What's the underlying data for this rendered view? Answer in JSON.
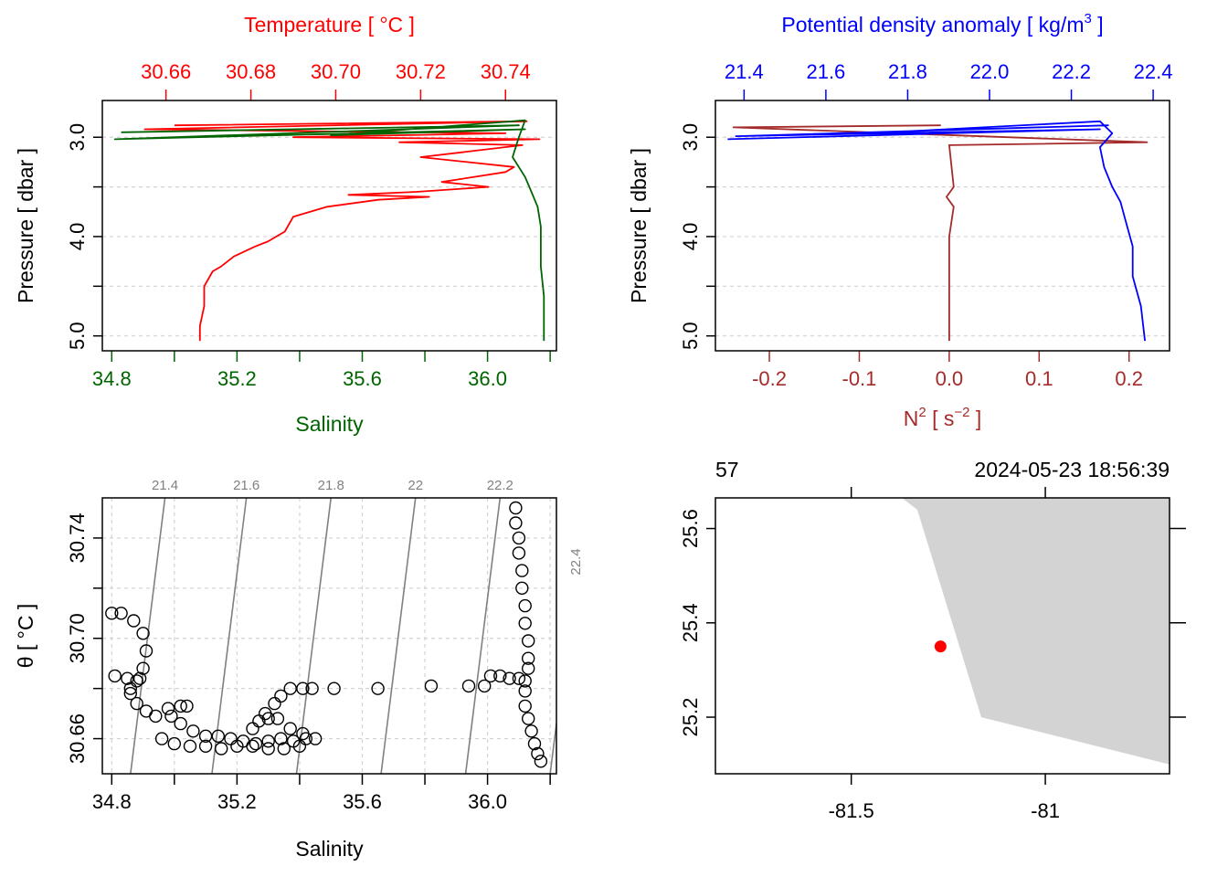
{
  "colors": {
    "temperature": "#ff0000",
    "salinity": "#006400",
    "density": "#0000ff",
    "n2": "#a52a2a",
    "grid": "#d3d3d3",
    "isopycnal": "#808080",
    "land": "#d3d3d3",
    "station": "#ff0000"
  },
  "chart_data": [
    {
      "type": "line",
      "panel": "profile-temperature-salinity",
      "title": "Temperature [ °C ]",
      "top_axis": {
        "label": "Temperature [ °C ]",
        "range": [
          30.645,
          30.752
        ],
        "ticks": [
          30.66,
          30.68,
          30.7,
          30.72,
          30.74
        ],
        "tick_labels": [
          "30.66",
          "30.68",
          "30.70",
          "30.72",
          "30.74"
        ]
      },
      "bottom_axis": {
        "label": "Salinity",
        "range": [
          34.77,
          36.22
        ],
        "ticks": [
          34.8,
          35.0,
          35.2,
          35.4,
          35.6,
          35.8,
          36.0,
          36.2
        ],
        "tick_labels": [
          "34.8",
          "35.2",
          "35.6",
          "36.0"
        ]
      },
      "y_axis": {
        "label": "Pressure [ dbar ]",
        "range": [
          5.15,
          2.63
        ],
        "ticks": [
          3.0,
          3.5,
          4.0,
          4.5,
          5.0
        ],
        "tick_labels": [
          "3.0",
          "4.0",
          "5.0"
        ]
      },
      "series": [
        {
          "name": "Temperature",
          "x": [
            30.662,
            30.745,
            30.655,
            30.74,
            30.69,
            30.748,
            30.715,
            30.744,
            30.72,
            30.742,
            30.74,
            30.725,
            30.736,
            30.719,
            30.703,
            30.722,
            30.71,
            30.698,
            30.69,
            30.688,
            30.684,
            30.681,
            30.676,
            30.673,
            30.671,
            30.669,
            30.669,
            30.668,
            30.668
          ],
          "p": [
            2.88,
            2.84,
            2.92,
            2.96,
            3.0,
            3.02,
            3.05,
            3.08,
            3.2,
            3.3,
            3.35,
            3.45,
            3.5,
            3.55,
            3.58,
            3.6,
            3.63,
            3.7,
            3.8,
            3.95,
            4.05,
            4.1,
            4.2,
            4.3,
            4.35,
            4.5,
            4.7,
            4.9,
            5.05
          ]
        },
        {
          "name": "Salinity",
          "x": [
            34.83,
            36.1,
            34.81,
            36.12,
            35.5,
            36.12,
            36.1,
            36.08,
            36.12,
            36.14,
            36.16,
            36.17,
            36.17,
            36.17,
            36.18,
            36.18
          ],
          "p": [
            2.95,
            2.88,
            3.02,
            2.92,
            2.98,
            2.83,
            3.0,
            3.2,
            3.4,
            3.55,
            3.7,
            3.9,
            4.1,
            4.3,
            4.6,
            5.05
          ]
        }
      ]
    },
    {
      "type": "line",
      "panel": "profile-density-n2",
      "title": "Potential density anomaly [ kg/m3 ]",
      "top_axis": {
        "label": "Potential density anomaly [ kg/m",
        "label_sup": "3",
        "label_end": " ]",
        "range": [
          21.33,
          22.44
        ],
        "ticks": [
          21.4,
          21.6,
          21.8,
          22.0,
          22.2,
          22.4
        ],
        "tick_labels": [
          "21.4",
          "21.6",
          "21.8",
          "22.0",
          "22.2",
          "22.4"
        ]
      },
      "bottom_axis": {
        "label": "N",
        "label_sup": "2",
        "label_mid": " [ s",
        "label_sup2": "−2",
        "label_end": " ]",
        "range": [
          -0.26,
          0.245
        ],
        "ticks": [
          -0.2,
          -0.1,
          0.0,
          0.1,
          0.2
        ],
        "tick_labels": [
          "-0.2",
          "-0.1",
          "0.0",
          "0.1",
          "0.2"
        ]
      },
      "y_axis": {
        "label": "Pressure [ dbar ]",
        "range": [
          5.15,
          2.63
        ],
        "ticks": [
          3.0,
          3.5,
          4.0,
          4.5,
          5.0
        ],
        "tick_labels": [
          "3.0",
          "4.0",
          "5.0"
        ]
      },
      "series": [
        {
          "name": "Potential density anomaly",
          "x": [
            21.36,
            22.27,
            21.38,
            22.29,
            21.8,
            22.27,
            22.3,
            22.27,
            22.28,
            22.3,
            22.32,
            22.33,
            22.34,
            22.35,
            22.35,
            22.37,
            22.38
          ],
          "p": [
            3.02,
            2.92,
            2.99,
            2.88,
            2.94,
            2.84,
            2.96,
            3.1,
            3.3,
            3.5,
            3.65,
            3.8,
            3.95,
            4.1,
            4.4,
            4.7,
            5.05
          ]
        },
        {
          "name": "N2",
          "x": [
            -0.24,
            -0.01,
            -0.24,
            0.22,
            0.0,
            0.005,
            -0.003,
            0.005,
            0.0,
            0.0,
            0.0
          ],
          "p": [
            2.9,
            2.88,
            2.9,
            3.05,
            3.08,
            3.5,
            3.6,
            3.7,
            4.0,
            4.5,
            5.05
          ]
        }
      ]
    },
    {
      "type": "scatter",
      "panel": "ts-diagram",
      "xlabel": "Salinity",
      "ylabel": "θ [ °C ]",
      "xlim": [
        34.77,
        36.22
      ],
      "ylim": [
        30.646,
        30.756
      ],
      "x_ticks": [
        34.8,
        35.0,
        35.2,
        35.4,
        35.6,
        35.8,
        36.0,
        36.2
      ],
      "x_tick_labels": [
        "34.8",
        "35.2",
        "35.6",
        "36.0"
      ],
      "y_ticks": [
        30.66,
        30.68,
        30.7,
        30.72,
        30.74
      ],
      "y_tick_labels": [
        "30.66",
        "30.70",
        "30.74"
      ],
      "isopycnals": [
        {
          "label": "21.4",
          "s_bottom": 34.86,
          "s_top": 34.97
        },
        {
          "label": "21.6",
          "s_bottom": 35.12,
          "s_top": 35.23
        },
        {
          "label": "21.8",
          "s_bottom": 35.39,
          "s_top": 35.5
        },
        {
          "label": "22",
          "s_bottom": 35.66,
          "s_top": 35.77
        },
        {
          "label": "22.2",
          "s_bottom": 35.93,
          "s_top": 36.04
        },
        {
          "label": "22.4",
          "s_bottom": 36.2,
          "s_top": 36.31
        }
      ],
      "points": [
        [
          34.8,
          30.71
        ],
        [
          34.83,
          30.71
        ],
        [
          34.87,
          30.707
        ],
        [
          34.9,
          30.702
        ],
        [
          34.91,
          30.695
        ],
        [
          34.9,
          30.688
        ],
        [
          34.88,
          30.683
        ],
        [
          34.86,
          30.68
        ],
        [
          34.81,
          30.685
        ],
        [
          34.85,
          30.684
        ],
        [
          34.89,
          30.684
        ],
        [
          34.86,
          30.678
        ],
        [
          34.88,
          30.674
        ],
        [
          34.91,
          30.671
        ],
        [
          34.94,
          30.669
        ],
        [
          34.98,
          30.672
        ],
        [
          35.02,
          30.673
        ],
        [
          35.04,
          30.673
        ],
        [
          34.99,
          30.669
        ],
        [
          35.02,
          30.666
        ],
        [
          35.06,
          30.663
        ],
        [
          35.1,
          30.661
        ],
        [
          35.14,
          30.661
        ],
        [
          35.18,
          30.66
        ],
        [
          35.22,
          30.659
        ],
        [
          35.26,
          30.658
        ],
        [
          35.3,
          30.659
        ],
        [
          35.34,
          30.66
        ],
        [
          35.38,
          30.659
        ],
        [
          35.42,
          30.66
        ],
        [
          35.45,
          30.66
        ],
        [
          34.96,
          30.66
        ],
        [
          35.0,
          30.658
        ],
        [
          35.05,
          30.657
        ],
        [
          35.1,
          30.657
        ],
        [
          35.15,
          30.656
        ],
        [
          35.2,
          30.657
        ],
        [
          35.25,
          30.657
        ],
        [
          35.3,
          30.656
        ],
        [
          35.35,
          30.656
        ],
        [
          35.4,
          30.657
        ],
        [
          35.25,
          30.664
        ],
        [
          35.27,
          30.667
        ],
        [
          35.3,
          30.668
        ],
        [
          35.33,
          30.668
        ],
        [
          35.29,
          30.67
        ],
        [
          35.32,
          30.674
        ],
        [
          35.34,
          30.677
        ],
        [
          35.37,
          30.68
        ],
        [
          35.41,
          30.68
        ],
        [
          35.37,
          30.664
        ],
        [
          35.41,
          30.662
        ],
        [
          35.44,
          30.68
        ],
        [
          35.51,
          30.68
        ],
        [
          35.65,
          30.68
        ],
        [
          35.82,
          30.681
        ],
        [
          35.94,
          30.681
        ],
        [
          35.99,
          30.681
        ],
        [
          36.01,
          30.685
        ],
        [
          36.04,
          30.685
        ],
        [
          36.07,
          30.684
        ],
        [
          36.1,
          30.684
        ],
        [
          36.12,
          30.683
        ],
        [
          36.09,
          30.752
        ],
        [
          36.09,
          30.746
        ],
        [
          36.1,
          30.74
        ],
        [
          36.1,
          30.734
        ],
        [
          36.11,
          30.727
        ],
        [
          36.11,
          30.72
        ],
        [
          36.12,
          30.713
        ],
        [
          36.12,
          30.706
        ],
        [
          36.13,
          30.699
        ],
        [
          36.13,
          30.692
        ],
        [
          36.13,
          30.688
        ],
        [
          36.12,
          30.679
        ],
        [
          36.12,
          30.673
        ],
        [
          36.13,
          30.668
        ],
        [
          36.14,
          30.663
        ],
        [
          36.15,
          30.658
        ],
        [
          36.16,
          30.654
        ],
        [
          36.17,
          30.651
        ]
      ]
    },
    {
      "type": "map",
      "panel": "station-map",
      "station_label": "57",
      "datetime": "2024-05-23 18:56:39",
      "xlim": [
        -81.85,
        -80.68
      ],
      "ylim": [
        25.08,
        25.665
      ],
      "x_ticks": [
        -81.5,
        -81.0
      ],
      "x_tick_labels": [
        "-81.5",
        "-81"
      ],
      "y_ticks": [
        25.2,
        25.4,
        25.6
      ],
      "y_tick_labels": [
        "25.2",
        "25.4",
        "25.6"
      ],
      "station": {
        "lon": -81.27,
        "lat": 25.35
      },
      "land": [
        [
          -81.37,
          25.665
        ],
        [
          -81.33,
          25.64
        ],
        [
          -81.165,
          25.2
        ],
        [
          -80.68,
          25.1
        ],
        [
          -80.68,
          25.665
        ]
      ]
    }
  ]
}
